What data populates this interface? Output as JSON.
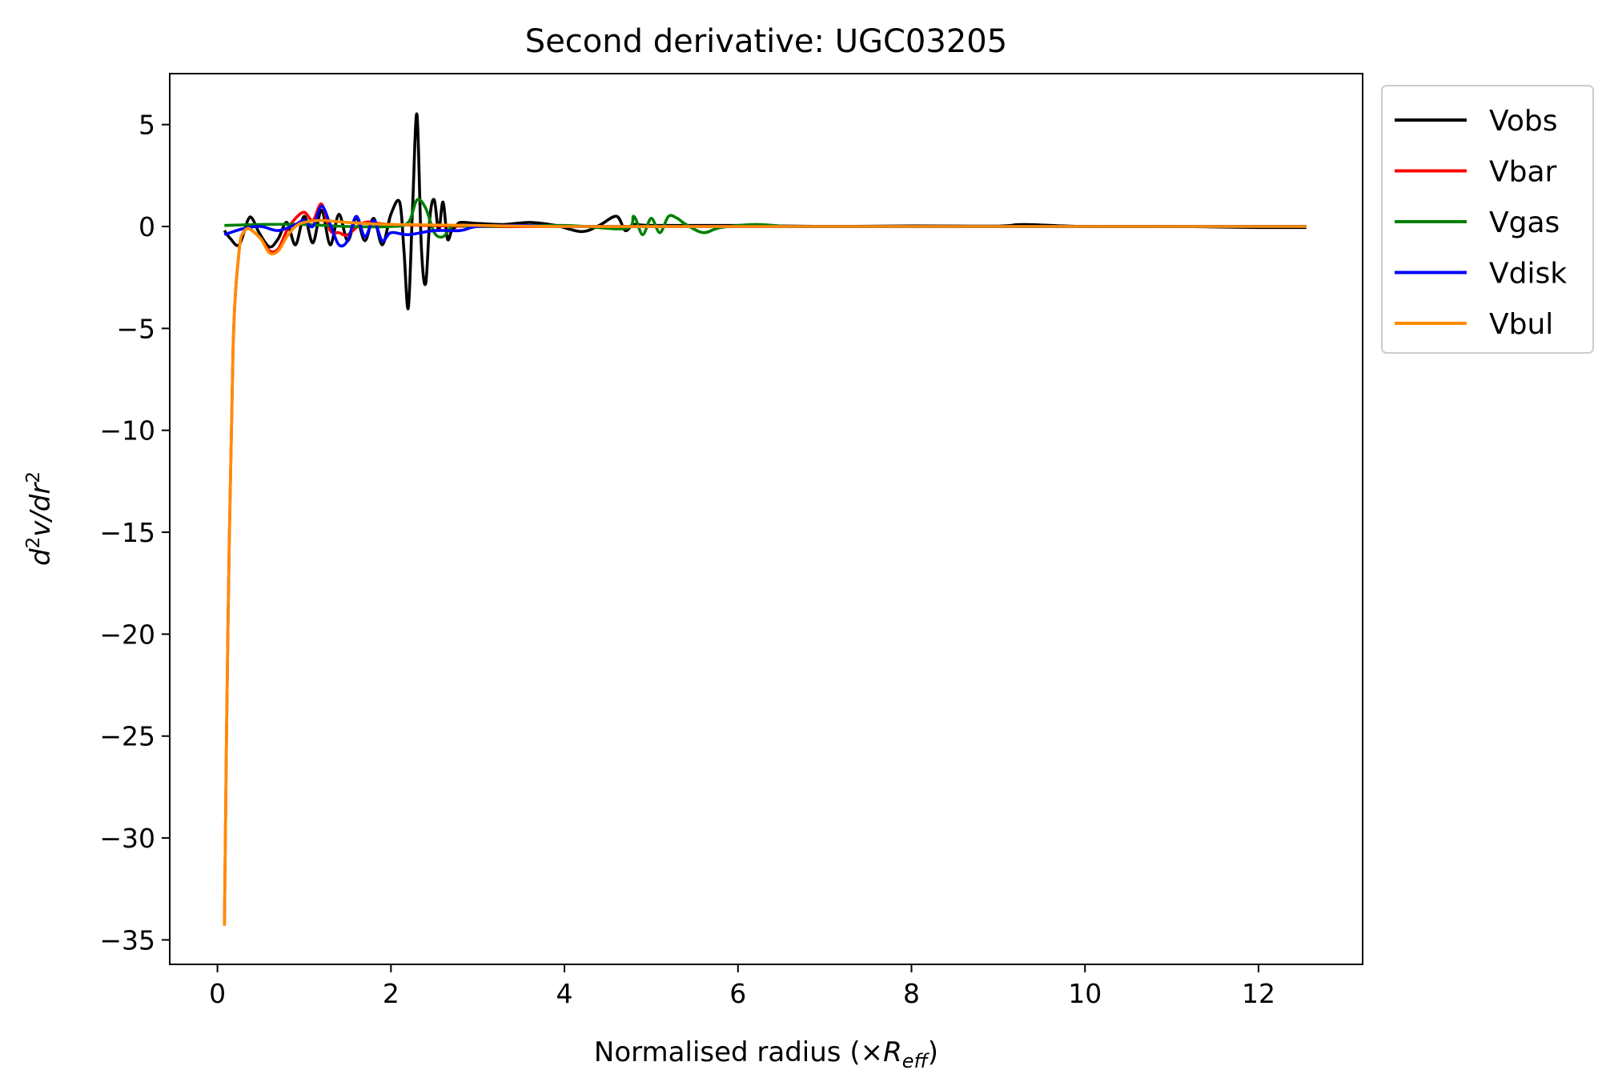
{
  "chart_data": {
    "type": "line",
    "title": "Second derivative: UGC03205",
    "xlabel": {
      "prefix": "Normalised radius (×",
      "var": "R",
      "sub": "eff",
      "suffix": ")"
    },
    "ylabel": {
      "d": "d",
      "exp1": "2",
      "mid": "v/dr",
      "exp2": "2"
    },
    "xlim": [
      -0.55,
      13.2
    ],
    "ylim": [
      -36.2,
      7.5
    ],
    "xticks": [
      0,
      2,
      4,
      6,
      8,
      10,
      12
    ],
    "xtick_labels": [
      "0",
      "2",
      "4",
      "6",
      "8",
      "10",
      "12"
    ],
    "yticks": [
      5,
      0,
      -5,
      -10,
      -15,
      -20,
      -25,
      -30,
      -35
    ],
    "ytick_labels": [
      "5",
      "0",
      "−5",
      "−10",
      "−15",
      "−20",
      "−25",
      "−30",
      "−35"
    ],
    "grid": false,
    "legend_position": "outside-top-right",
    "series": [
      {
        "name": "Vobs",
        "color": "#000000",
        "x": [
          0.08,
          0.15,
          0.25,
          0.35,
          0.4,
          0.48,
          0.6,
          0.7,
          0.8,
          0.9,
          1.0,
          1.1,
          1.2,
          1.3,
          1.4,
          1.5,
          1.6,
          1.7,
          1.8,
          1.9,
          2.0,
          2.1,
          2.15,
          2.2,
          2.25,
          2.3,
          2.35,
          2.4,
          2.45,
          2.5,
          2.55,
          2.6,
          2.65,
          2.7,
          2.75,
          2.8,
          3.0,
          3.3,
          3.6,
          3.9,
          4.2,
          4.4,
          4.6,
          4.7,
          4.8,
          5.0,
          6.0,
          7.0,
          8.0,
          9.0,
          9.3,
          10.0,
          11.0,
          12.0,
          12.55
        ],
        "y": [
          -0.2,
          -0.6,
          -0.9,
          0.3,
          0.4,
          -0.3,
          -1.0,
          -0.6,
          0.2,
          -0.9,
          0.5,
          -0.8,
          0.8,
          -0.9,
          0.6,
          -0.7,
          0.4,
          -0.7,
          0.4,
          -0.9,
          0.6,
          1.2,
          -1.2,
          -4.0,
          1.0,
          5.5,
          -1.0,
          -2.8,
          0.5,
          1.3,
          -0.2,
          1.2,
          -0.6,
          -0.2,
          0.0,
          0.2,
          0.15,
          0.1,
          0.2,
          0.05,
          -0.25,
          0.05,
          0.5,
          -0.2,
          0.1,
          0.05,
          0.05,
          0.0,
          0.03,
          0.02,
          0.1,
          0.0,
          0.0,
          -0.05,
          -0.05
        ]
      },
      {
        "name": "Vbar",
        "color": "#ff0000",
        "x": [
          0.08,
          0.12,
          0.18,
          0.25,
          0.3,
          0.35,
          0.4,
          0.5,
          0.6,
          0.7,
          0.8,
          0.9,
          1.0,
          1.1,
          1.2,
          1.3,
          1.4,
          1.5,
          1.7,
          2.0,
          3.0,
          4.0,
          6.0,
          8.0,
          10.0,
          12.55
        ],
        "y": [
          -34.3,
          -20.0,
          -6.0,
          -1.2,
          -0.3,
          -0.1,
          -0.2,
          -0.6,
          -1.2,
          -1.1,
          -0.2,
          0.4,
          0.7,
          0.3,
          1.1,
          -0.2,
          -0.3,
          -0.4,
          0.2,
          0.1,
          0.0,
          0.0,
          0.0,
          0.0,
          0.0,
          0.0
        ]
      },
      {
        "name": "Vgas",
        "color": "#008000",
        "x": [
          0.08,
          0.5,
          1.0,
          1.5,
          2.0,
          2.2,
          2.3,
          2.4,
          2.5,
          2.6,
          2.7,
          2.8,
          3.0,
          4.0,
          4.7,
          4.8,
          4.9,
          5.0,
          5.1,
          5.2,
          5.3,
          5.4,
          5.6,
          5.8,
          6.2,
          6.6,
          7.0,
          8.0,
          10.0,
          12.55
        ],
        "y": [
          0.05,
          0.1,
          0.1,
          0.0,
          0.0,
          0.2,
          1.3,
          0.9,
          -0.3,
          -0.5,
          0.0,
          0.05,
          0.0,
          0.05,
          -0.1,
          0.5,
          -0.4,
          0.4,
          -0.3,
          0.5,
          0.4,
          0.1,
          -0.3,
          -0.05,
          0.1,
          0.0,
          0.0,
          0.0,
          0.0,
          0.0
        ]
      },
      {
        "name": "Vdisk",
        "color": "#0000ff",
        "x": [
          0.08,
          0.3,
          0.5,
          0.7,
          0.9,
          1.0,
          1.1,
          1.2,
          1.3,
          1.4,
          1.5,
          1.6,
          1.7,
          1.8,
          1.9,
          2.0,
          2.2,
          2.5,
          2.8,
          3.0,
          3.5,
          4.0,
          6.0,
          8.0,
          10.0,
          12.55
        ],
        "y": [
          -0.4,
          -0.1,
          0.0,
          -0.2,
          0.1,
          0.3,
          0.0,
          1.0,
          0.1,
          -0.9,
          -0.7,
          0.5,
          -0.5,
          0.3,
          -0.7,
          -0.3,
          -0.4,
          -0.2,
          -0.2,
          0.0,
          0.05,
          0.0,
          0.0,
          0.0,
          0.0,
          0.0
        ]
      },
      {
        "name": "Vbul",
        "color": "#ff8c00",
        "x": [
          0.08,
          0.12,
          0.18,
          0.25,
          0.3,
          0.35,
          0.4,
          0.5,
          0.6,
          0.7,
          0.8,
          0.9,
          1.0,
          1.2,
          1.5,
          2.0,
          3.0,
          4.0,
          6.0,
          8.0,
          10.0,
          12.55
        ],
        "y": [
          -34.3,
          -20.0,
          -6.0,
          -1.2,
          -0.3,
          -0.1,
          -0.2,
          -0.6,
          -1.3,
          -1.2,
          -0.5,
          0.0,
          0.2,
          0.3,
          0.2,
          0.1,
          0.05,
          0.0,
          0.0,
          0.0,
          0.0,
          0.0
        ]
      }
    ]
  }
}
